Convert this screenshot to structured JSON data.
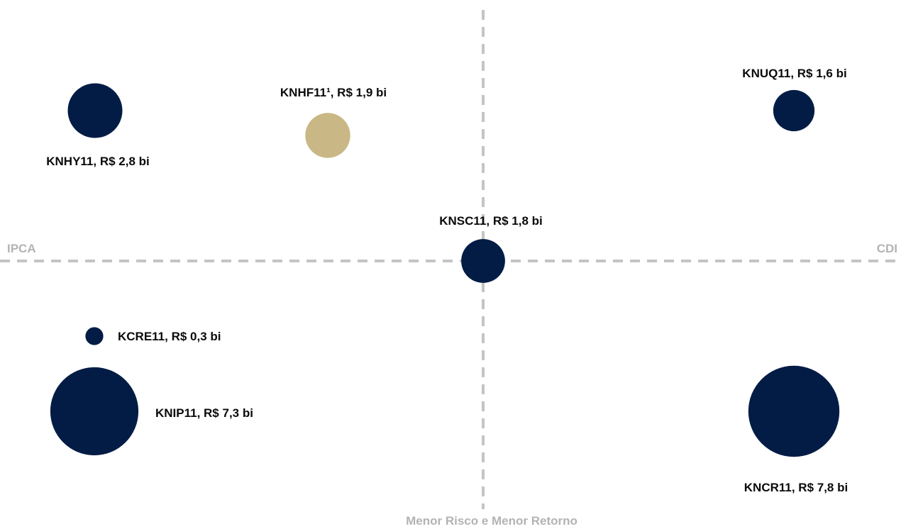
{
  "chart_data": {
    "type": "scatter",
    "x_axis": {
      "left_label": "IPCA",
      "right_label": "CDI"
    },
    "y_axis": {
      "bottom_label": "Menor Risco e Menor Retorno"
    },
    "grid": false,
    "colors": {
      "default": "#031c45",
      "highlight": "#c9b885",
      "axis": "#c4c4c4",
      "axis_text": "#b3b3b3"
    },
    "points": [
      {
        "name": "KNHY11",
        "value_label": "KNHY11, R$ 2,8 bi",
        "aum_bi": 2.8,
        "quadrant": "IPCA / upper",
        "color": "#031c45",
        "label_pos": "below"
      },
      {
        "name": "KNHF11",
        "value_label": "KNHF11¹, R$ 1,9 bi",
        "aum_bi": 1.9,
        "quadrant": "IPCA / upper",
        "color": "#c9b885",
        "label_pos": "above"
      },
      {
        "name": "KNUQ11",
        "value_label": "KNUQ11, R$ 1,6 bi",
        "aum_bi": 1.6,
        "quadrant": "CDI / upper",
        "color": "#031c45",
        "label_pos": "above"
      },
      {
        "name": "KNSC11",
        "value_label": "KNSC11, R$ 1,8 bi",
        "aum_bi": 1.8,
        "quadrant": "center",
        "color": "#031c45",
        "label_pos": "above"
      },
      {
        "name": "KCRE11",
        "value_label": "KCRE11, R$ 0,3 bi",
        "aum_bi": 0.3,
        "quadrant": "IPCA / lower",
        "color": "#031c45",
        "label_pos": "right"
      },
      {
        "name": "KNIP11",
        "value_label": "KNIP11, R$ 7,3 bi",
        "aum_bi": 7.3,
        "quadrant": "IPCA / lower",
        "color": "#031c45",
        "label_pos": "right"
      },
      {
        "name": "KNCR11",
        "value_label": "KNCR11, R$ 7,8 bi",
        "aum_bi": 7.8,
        "quadrant": "CDI / lower",
        "color": "#031c45",
        "label_pos": "below"
      }
    ]
  }
}
